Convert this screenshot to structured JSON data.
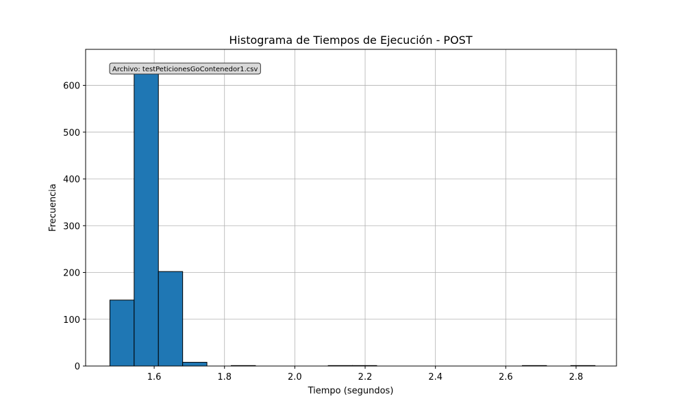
{
  "chart_data": {
    "type": "bar",
    "title": "Histograma de Tiempos de Ejecución - POST",
    "xlabel": "Tiempo (segundos)",
    "ylabel": "Frecuencia",
    "annotation": "Archivo: testPeticionesGoContenedor1.csv",
    "xlim": [
      1.405,
      2.915
    ],
    "ylim": [
      0,
      677
    ],
    "xticks": [
      1.6,
      1.8,
      2.0,
      2.2,
      2.4,
      2.6,
      2.8
    ],
    "xtick_labels": [
      "1.6",
      "1.8",
      "2.0",
      "2.2",
      "2.4",
      "2.6",
      "2.8"
    ],
    "yticks": [
      0,
      100,
      200,
      300,
      400,
      500,
      600
    ],
    "ytick_labels": [
      "0",
      "100",
      "200",
      "300",
      "400",
      "500",
      "600"
    ],
    "grid": true,
    "bar_color": "#1f77b4",
    "bin_edges": [
      1.474,
      1.543,
      1.612,
      1.681,
      1.75,
      1.819,
      1.888,
      1.957,
      2.026,
      2.095,
      2.164,
      2.233,
      2.302,
      2.371,
      2.44,
      2.509,
      2.578,
      2.647,
      2.716,
      2.785,
      2.854
    ],
    "values": [
      141,
      645,
      202,
      8,
      0,
      1,
      0,
      0,
      0,
      1,
      1,
      0,
      0,
      0,
      0,
      0,
      0,
      1,
      0,
      1
    ]
  }
}
